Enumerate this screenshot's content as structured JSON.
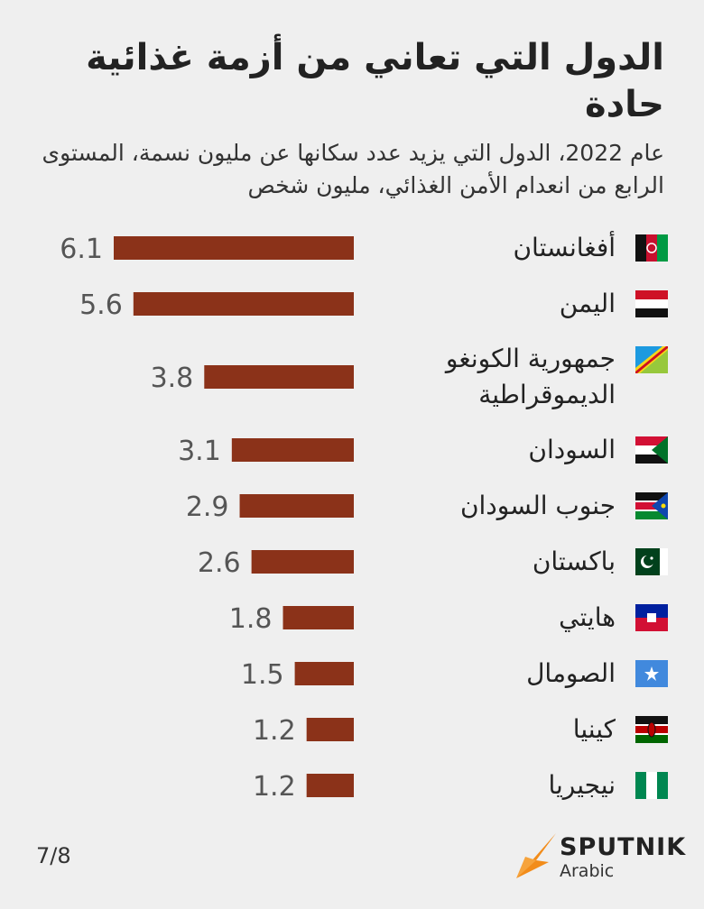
{
  "title": "الدول التي تعاني من أزمة غذائية حادة",
  "subtitle": "عام 2022، الدول التي يزيد عدد سكانها عن مليون نسمة، المستوى الرابع من انعدام الأمن الغذائي، مليون شخص",
  "chart_data": {
    "type": "bar",
    "orientation": "horizontal",
    "categories": [
      "أفغانستان",
      "اليمن",
      "جمهورية الكونغو الديموقراطية",
      "السودان",
      "جنوب السودان",
      "باكستان",
      "هايتي",
      "الصومال",
      "كينيا",
      "نيجيريا"
    ],
    "values": [
      6.1,
      5.6,
      3.8,
      3.1,
      2.9,
      2.6,
      1.8,
      1.5,
      1.2,
      1.2
    ],
    "value_labels": [
      "6.1",
      "5.6",
      "3.8",
      "3.1",
      "2.9",
      "2.6",
      "1.8",
      "1.5",
      "1.2",
      "1.2"
    ],
    "bar_color": "#8b3219",
    "grid": false,
    "legend": "none"
  },
  "flags": [
    "afghanistan-flag-icon",
    "yemen-flag-icon",
    "dr-congo-flag-icon",
    "sudan-flag-icon",
    "south-sudan-flag-icon",
    "pakistan-flag-icon",
    "haiti-flag-icon",
    "somalia-flag-icon",
    "kenya-flag-icon",
    "nigeria-flag-icon"
  ],
  "page_number": "7/8",
  "logo": {
    "name": "SPUTNIK",
    "sub": "Arabic",
    "accent": "#f28c1a"
  }
}
